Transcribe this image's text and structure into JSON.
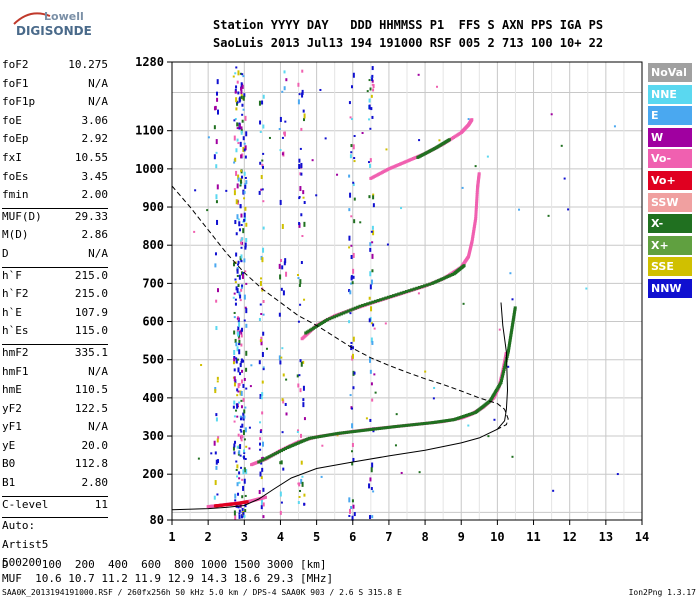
{
  "logo": {
    "line1": "Lowell",
    "line2": "DIGISONDE"
  },
  "header": {
    "line1": "Station YYYY DAY   DDD HHMMSS P1  FFS S AXN PPS IGA PS",
    "line2": "SaoLuis 2013 Jul13 194 191000 RSF 005 2 713 100 10+ 22"
  },
  "params": [
    {
      "k": "foF2",
      "v": "10.275"
    },
    {
      "k": "foF1",
      "v": "N/A"
    },
    {
      "k": "foF1p",
      "v": "N/A"
    },
    {
      "k": "foE",
      "v": "3.06"
    },
    {
      "k": "foEp",
      "v": "2.92"
    },
    {
      "k": "fxI",
      "v": "10.55"
    },
    {
      "k": "foEs",
      "v": "3.45"
    },
    {
      "k": "fmin",
      "v": "2.00"
    },
    {
      "k": "MUF(D)",
      "v": "29.33",
      "sep": true
    },
    {
      "k": "M(D)",
      "v": "2.86"
    },
    {
      "k": "D",
      "v": "N/A"
    },
    {
      "k": "h`F",
      "v": "215.0",
      "sep": true
    },
    {
      "k": "h`F2",
      "v": "215.0"
    },
    {
      "k": "h`E",
      "v": "107.9"
    },
    {
      "k": "h`Es",
      "v": "115.0"
    },
    {
      "k": "hmF2",
      "v": "335.1",
      "sep": true
    },
    {
      "k": "hmF1",
      "v": "N/A"
    },
    {
      "k": "hmE",
      "v": "110.5"
    },
    {
      "k": "yF2",
      "v": "122.5"
    },
    {
      "k": "yF1",
      "v": "N/A"
    },
    {
      "k": "yE",
      "v": "20.0"
    },
    {
      "k": "B0",
      "v": "112.8"
    },
    {
      "k": "B1",
      "v": "2.80"
    },
    {
      "k": "C-level",
      "v": "11",
      "sep": true
    },
    {
      "k": "Auto:",
      "v": "",
      "sep": true
    },
    {
      "k": "Artist5",
      "v": ""
    },
    {
      "k": "500200",
      "v": ""
    }
  ],
  "legend": [
    {
      "label": "NoVal",
      "color": "#a0a0a0"
    },
    {
      "label": "NNE",
      "color": "#5ad8f0"
    },
    {
      "label": "E",
      "color": "#4aa8f0"
    },
    {
      "label": "W",
      "color": "#a000a0"
    },
    {
      "label": "Vo-",
      "color": "#f060b0"
    },
    {
      "label": "Vo+",
      "color": "#e00020"
    },
    {
      "label": "SSW",
      "color": "#f0a0a0"
    },
    {
      "label": "X-",
      "color": "#207020"
    },
    {
      "label": "X+",
      "color": "#60a040"
    },
    {
      "label": "SSE",
      "color": "#d0c000"
    },
    {
      "label": "NNW",
      "color": "#1010d0"
    }
  ],
  "footer": {
    "line1": "D     100  200  400  600  800 1000 1500 3000 [km]",
    "line2": "MUF  10.6 10.7 11.2 11.9 12.9 14.3 18.6 29.3 [MHz]",
    "line3": "SAA0K_2013194191000.RSF / 260fx256h 50 kHz 5.0 km / DPS-4 SAA0K 903 / 2.6 S 315.8 E",
    "version": "Ion2Png 1.3.17"
  },
  "chart_data": {
    "type": "scatter",
    "xlabel": "",
    "ylabel": "",
    "xlim": [
      1,
      14
    ],
    "ylim": [
      80,
      1280
    ],
    "x_ticks": [
      1,
      2,
      3,
      4,
      5,
      6,
      7,
      8,
      9,
      10,
      11,
      12,
      13,
      14
    ],
    "y_ticks": [
      80,
      200,
      300,
      400,
      500,
      600,
      700,
      800,
      900,
      1000,
      1100,
      1280
    ],
    "grid": true,
    "series": [
      {
        "color": "#f060b0",
        "points": [
          [
            3.2,
            225
          ],
          [
            3.6,
            240
          ],
          [
            4.0,
            262
          ],
          [
            4.5,
            285
          ],
          [
            5.0,
            298
          ],
          [
            5.5,
            305
          ],
          [
            6.0,
            312
          ],
          [
            6.5,
            318
          ],
          [
            7.0,
            323
          ],
          [
            7.5,
            328
          ],
          [
            8.0,
            333
          ],
          [
            8.5,
            338
          ],
          [
            9.0,
            347
          ],
          [
            9.3,
            358
          ],
          [
            9.6,
            375
          ],
          [
            9.9,
            400
          ],
          [
            10.05,
            430
          ],
          [
            10.15,
            470
          ],
          [
            10.25,
            520
          ]
        ]
      },
      {
        "color": "#207020",
        "points": [
          [
            3.4,
            232
          ],
          [
            4.2,
            270
          ],
          [
            4.8,
            294
          ],
          [
            5.6,
            307
          ],
          [
            6.4,
            316
          ],
          [
            7.2,
            325
          ],
          [
            8.2,
            335
          ],
          [
            8.8,
            343
          ],
          [
            9.4,
            362
          ],
          [
            9.8,
            392
          ],
          [
            10.1,
            440
          ],
          [
            10.3,
            520
          ],
          [
            10.4,
            580
          ],
          [
            10.5,
            640
          ]
        ]
      },
      {
        "color": "#f060b0",
        "points": [
          [
            4.6,
            555
          ],
          [
            5.0,
            590
          ],
          [
            5.5,
            615
          ],
          [
            6.0,
            632
          ],
          [
            6.5,
            648
          ],
          [
            7.0,
            663
          ],
          [
            7.5,
            678
          ],
          [
            8.0,
            693
          ],
          [
            8.5,
            712
          ],
          [
            9.0,
            742
          ],
          [
            9.2,
            770
          ],
          [
            9.3,
            810
          ],
          [
            9.4,
            870
          ],
          [
            9.45,
            950
          ],
          [
            9.5,
            990
          ]
        ]
      },
      {
        "color": "#207020",
        "points": [
          [
            4.7,
            570
          ],
          [
            5.3,
            605
          ],
          [
            6.2,
            640
          ],
          [
            7.2,
            670
          ],
          [
            8.2,
            700
          ],
          [
            8.8,
            725
          ],
          [
            9.1,
            748
          ]
        ]
      },
      {
        "color": "#f060b0",
        "points": [
          [
            6.5,
            975
          ],
          [
            7.0,
            1000
          ],
          [
            7.5,
            1020
          ],
          [
            8.0,
            1040
          ],
          [
            8.5,
            1065
          ],
          [
            9.0,
            1095
          ],
          [
            9.2,
            1115
          ],
          [
            9.3,
            1130
          ]
        ]
      },
      {
        "color": "#207020",
        "points": [
          [
            7.8,
            1030
          ],
          [
            8.3,
            1055
          ],
          [
            8.7,
            1078
          ]
        ]
      }
    ],
    "es_traces": [
      {
        "color": "#f060b0",
        "points": [
          [
            2.0,
            115
          ],
          [
            2.3,
            118
          ],
          [
            2.6,
            122
          ],
          [
            2.9,
            125
          ],
          [
            3.2,
            130
          ],
          [
            3.4,
            135
          ],
          [
            3.6,
            140
          ]
        ]
      },
      {
        "color": "#e00020",
        "points": [
          [
            2.2,
            117
          ],
          [
            2.5,
            120
          ],
          [
            2.8,
            123
          ],
          [
            3.1,
            128
          ]
        ]
      }
    ],
    "profile_solid": {
      "points": [
        [
          1.0,
          107
        ],
        [
          2.0,
          110
        ],
        [
          2.5,
          113
        ],
        [
          3.0,
          118
        ],
        [
          3.4,
          135
        ],
        [
          3.8,
          160
        ],
        [
          4.3,
          190
        ],
        [
          5.0,
          215
        ],
        [
          6.0,
          232
        ],
        [
          7.0,
          248
        ],
        [
          8.0,
          263
        ],
        [
          9.0,
          282
        ],
        [
          9.5,
          295
        ],
        [
          10.0,
          318
        ],
        [
          10.2,
          340
        ],
        [
          10.25,
          370
        ],
        [
          10.28,
          420
        ],
        [
          10.25,
          520
        ],
        [
          10.15,
          590
        ],
        [
          10.1,
          650
        ]
      ]
    },
    "profile_dashed": {
      "points": [
        [
          1.0,
          955
        ],
        [
          1.5,
          900
        ],
        [
          2.0,
          840
        ],
        [
          2.5,
          780
        ],
        [
          3.0,
          728
        ],
        [
          3.5,
          685
        ],
        [
          4.0,
          650
        ],
        [
          4.5,
          615
        ],
        [
          5.0,
          590
        ],
        [
          5.5,
          560
        ],
        [
          6.0,
          530
        ],
        [
          6.5,
          505
        ],
        [
          7.0,
          485
        ],
        [
          7.5,
          467
        ],
        [
          8.0,
          450
        ],
        [
          8.5,
          435
        ],
        [
          9.0,
          418
        ],
        [
          9.5,
          400
        ],
        [
          10.0,
          385
        ],
        [
          10.2,
          370
        ],
        [
          10.3,
          345
        ],
        [
          10.25,
          330
        ],
        [
          10.0,
          318
        ]
      ]
    }
  }
}
